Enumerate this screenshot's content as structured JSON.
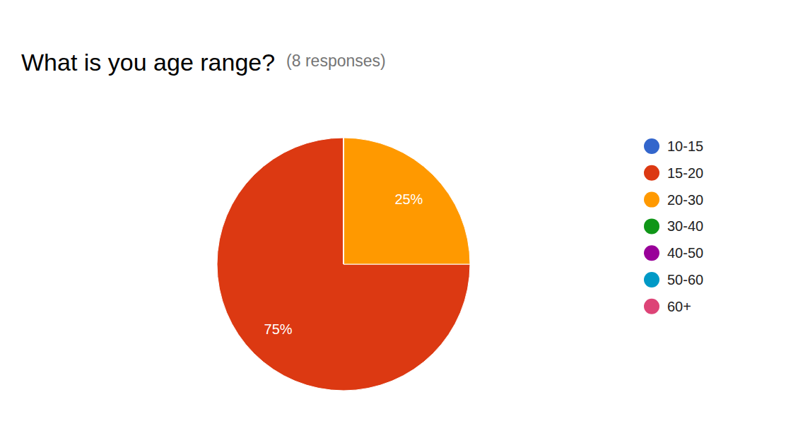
{
  "chart_data": {
    "type": "pie",
    "title": "What is you age range?",
    "subtitle": "(8 responses)",
    "categories": [
      "10-15",
      "15-20",
      "20-30",
      "30-40",
      "40-50",
      "50-60",
      "60+"
    ],
    "values": [
      0,
      75,
      25,
      0,
      0,
      0,
      0
    ],
    "value_labels": [
      null,
      "75%",
      "25%",
      null,
      null,
      null,
      null
    ],
    "colors": [
      "#3366cc",
      "#dc3912",
      "#ff9900",
      "#109618",
      "#990099",
      "#0099c6",
      "#dd4477"
    ],
    "data_labels": true,
    "legend": "right"
  }
}
